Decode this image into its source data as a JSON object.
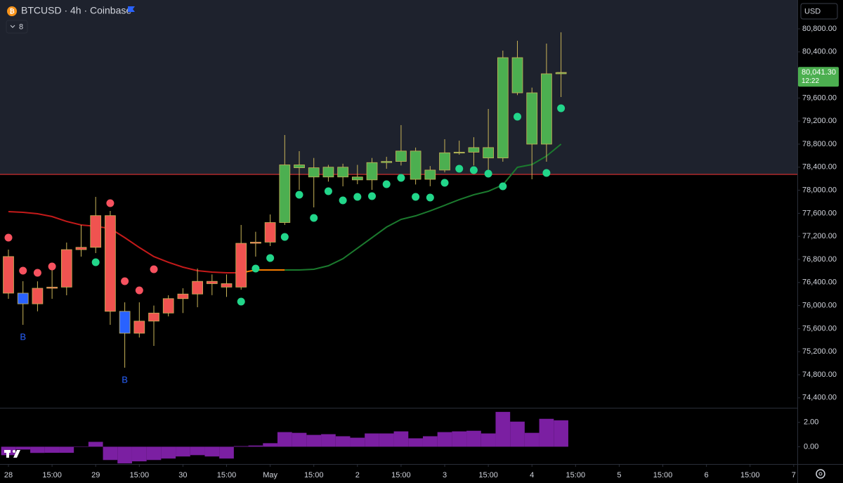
{
  "chart_data": {
    "type": "candlestick",
    "title": "BTCUSD · 4h · Coinbase",
    "indicator_count": 8,
    "currency": "USD",
    "open": [
      76850,
      76215,
      76030,
      76300,
      76320,
      76970,
      77010,
      77560,
      75900,
      75520,
      75730,
      75870,
      76120,
      76200,
      76420,
      76380,
      76320,
      77080,
      77100,
      77440,
      78440,
      78390,
      78230,
      78400,
      78230,
      78180,
      78480,
      78500,
      78680,
      78190,
      78350,
      78650,
      78660,
      78740,
      78560,
      80300,
      79690,
      78800,
      80020
    ],
    "high": [
      76971,
      76422,
      76420,
      76666,
      77093,
      77398,
      77885,
      77642,
      76056,
      76056,
      76000,
      76178,
      76300,
      76642,
      76540,
      76540,
      77398,
      77280,
      77580,
      78958,
      78678,
      78560,
      78440,
      78460,
      78440,
      78560,
      78580,
      79130,
      78740,
      78420,
      78885,
      78860,
      78920,
      79410,
      80422,
      80593,
      79780,
      80544,
      80740
    ],
    "low": [
      76117,
      75666,
      75900,
      76117,
      76178,
      76849,
      76910,
      75666,
      74922,
      75446,
      75300,
      75812,
      75870,
      75971,
      76180,
      76150,
      76276,
      76849,
      77032,
      77398,
      78007,
      77703,
      78150,
      78068,
      78105,
      78007,
      78373,
      78430,
      78100,
      78070,
      78310,
      78617,
      78430,
      78250,
      78495,
      79650,
      78190,
      78495,
      79617
    ],
    "close": [
      76215,
      76030,
      76300,
      76320,
      76970,
      77010,
      77560,
      75900,
      75520,
      75730,
      75870,
      76120,
      76200,
      76420,
      76380,
      76320,
      77080,
      77100,
      77440,
      78440,
      78390,
      78230,
      78400,
      78230,
      78180,
      78480,
      78500,
      78680,
      78190,
      78350,
      78650,
      78660,
      78740,
      78560,
      80300,
      79690,
      78800,
      80020,
      80041.3
    ],
    "candle_colors": [
      "#f05350",
      "#2962ff",
      "#f05350",
      "#f05350",
      "#f05350",
      "#f05350",
      "#f05350",
      "#f05350",
      "#2962ff",
      "#f05350",
      "#f05350",
      "#f05350",
      "#f05350",
      "#f05350",
      "#f05350",
      "#f05350",
      "#f05350",
      "#f05350",
      "#f05350",
      "#4caf50",
      "#4caf50",
      "#4caf50",
      "#4caf50",
      "#4caf50",
      "#4caf50",
      "#4caf50",
      "#4caf50",
      "#4caf50",
      "#4caf50",
      "#4caf50",
      "#4caf50",
      "#4caf50",
      "#4caf50",
      "#4caf50",
      "#4caf50",
      "#4caf50",
      "#4caf50",
      "#4caf50",
      "#4caf50"
    ],
    "wick_color": "#c9b458",
    "lines": [
      {
        "color": "#c41a1a",
        "values": [
          77629,
          77617,
          77593,
          77544,
          77459,
          77398,
          77374,
          77337,
          77178,
          77007,
          76849,
          76751,
          76666,
          76605,
          76581,
          76568,
          76568,
          null,
          null,
          null,
          null,
          null,
          null,
          null,
          null,
          null,
          null,
          null,
          null,
          null,
          null,
          null,
          null,
          null,
          null,
          null,
          null,
          null,
          null
        ]
      },
      {
        "color": "#f57c00",
        "values": [
          null,
          null,
          null,
          null,
          null,
          null,
          null,
          null,
          null,
          null,
          null,
          null,
          null,
          null,
          null,
          null,
          76568,
          76617,
          76617,
          76617,
          null,
          null,
          null,
          null,
          null,
          null,
          null,
          null,
          null,
          null,
          null,
          null,
          null,
          null,
          null,
          null,
          null,
          null,
          null
        ]
      },
      {
        "color": "#1b7a2e",
        "values": [
          null,
          null,
          null,
          null,
          null,
          null,
          null,
          null,
          null,
          null,
          null,
          null,
          null,
          null,
          null,
          null,
          null,
          null,
          null,
          76617,
          76617,
          76629,
          76690,
          76812,
          76995,
          77178,
          77361,
          77495,
          77556,
          77642,
          77739,
          77837,
          77922,
          77983,
          78093,
          78398,
          78446,
          78593,
          78800
        ]
      }
    ],
    "dots": [
      {
        "color": "#f7525f",
        "values": [
          77178,
          76605,
          76568,
          76678,
          null,
          null,
          null,
          77776,
          76422,
          76264,
          76629,
          null,
          null,
          null,
          null,
          null,
          null,
          null,
          null,
          null,
          null,
          null,
          null,
          null,
          null,
          null,
          null,
          null,
          null,
          null,
          null,
          null,
          null,
          null,
          null,
          null,
          null,
          null,
          null
        ]
      },
      {
        "color": "#22d68a",
        "values": [
          null,
          null,
          null,
          null,
          null,
          null,
          76751,
          null,
          null,
          null,
          null,
          null,
          null,
          null,
          null,
          null,
          76068,
          76642,
          76824,
          77190,
          77922,
          77520,
          77983,
          77824,
          77885,
          77898,
          78105,
          78215,
          77885,
          77873,
          78129,
          78373,
          78349,
          78288,
          78068,
          79276,
          null,
          78300,
          79422
        ]
      }
    ],
    "signals": [
      {
        "x": 1,
        "label": "B"
      },
      {
        "x": 8,
        "label": "B"
      }
    ],
    "hline": {
      "value": 78275,
      "color": "#e03131"
    },
    "last_price": {
      "value": 80041.3,
      "label": "80,041.30"
    },
    "countdown": "12:22",
    "xlim": [
      -0.58,
      54.25
    ],
    "ylim": [
      74227,
      81300
    ],
    "yticks": [
      {
        "value": 74400,
        "label": "74,400.00"
      },
      {
        "value": 74800,
        "label": "74,800.00"
      },
      {
        "value": 75200,
        "label": "75,200.00"
      },
      {
        "value": 75600,
        "label": "75,600.00"
      },
      {
        "value": 76000,
        "label": "76,000.00"
      },
      {
        "value": 76400,
        "label": "76,400.00"
      },
      {
        "value": 76800,
        "label": "76,800.00"
      },
      {
        "value": 77200,
        "label": "77,200.00"
      },
      {
        "value": 77600,
        "label": "77,600.00"
      },
      {
        "value": 78000,
        "label": "78,000.00"
      },
      {
        "value": 78400,
        "label": "78,400.00"
      },
      {
        "value": 78800,
        "label": "78,800.00"
      },
      {
        "value": 79200,
        "label": "79,200.00"
      },
      {
        "value": 79600,
        "label": "79,600.00"
      },
      {
        "value": 80000,
        "label": "80,000.00"
      },
      {
        "value": 80400,
        "label": "80,400.00"
      },
      {
        "value": 80800,
        "label": "80,800.00"
      }
    ],
    "xticks": [
      {
        "value": 0,
        "label": "28"
      },
      {
        "value": 3,
        "label": "15:00"
      },
      {
        "value": 6,
        "label": "29"
      },
      {
        "value": 9,
        "label": "15:00"
      },
      {
        "value": 12,
        "label": "30"
      },
      {
        "value": 15,
        "label": "15:00"
      },
      {
        "value": 18,
        "label": "May"
      },
      {
        "value": 21,
        "label": "15:00"
      },
      {
        "value": 24,
        "label": "2"
      },
      {
        "value": 27,
        "label": "15:00"
      },
      {
        "value": 30,
        "label": "3"
      },
      {
        "value": 33,
        "label": "15:00"
      },
      {
        "value": 36,
        "label": "4"
      },
      {
        "value": 39,
        "label": "15:00"
      },
      {
        "value": 42,
        "label": "5"
      },
      {
        "value": 45,
        "label": "15:00"
      },
      {
        "value": 48,
        "label": "6"
      },
      {
        "value": 51,
        "label": "15:00"
      },
      {
        "value": 54,
        "label": "7"
      }
    ],
    "oscillator": {
      "color": "#7b1fa2",
      "values": [
        -0.69,
        -0.23,
        -0.51,
        -0.5,
        -0.5,
        0.02,
        0.4,
        -1.09,
        -1.37,
        -1.2,
        -1.09,
        -0.97,
        -0.8,
        -0.69,
        -0.8,
        -0.97,
        0.05,
        0.1,
        0.29,
        1.2,
        1.14,
        0.97,
        1.03,
        0.86,
        0.74,
        1.09,
        1.09,
        1.26,
        0.69,
        0.86,
        1.2,
        1.26,
        1.31,
        1.09,
        2.86,
        2.06,
        1.14,
        2.29,
        2.17
      ],
      "ylim": [
        -1.42,
        3.14
      ],
      "yticks": [
        {
          "value": 0,
          "label": "0.00"
        },
        {
          "value": 2,
          "label": "2.00"
        }
      ]
    }
  }
}
